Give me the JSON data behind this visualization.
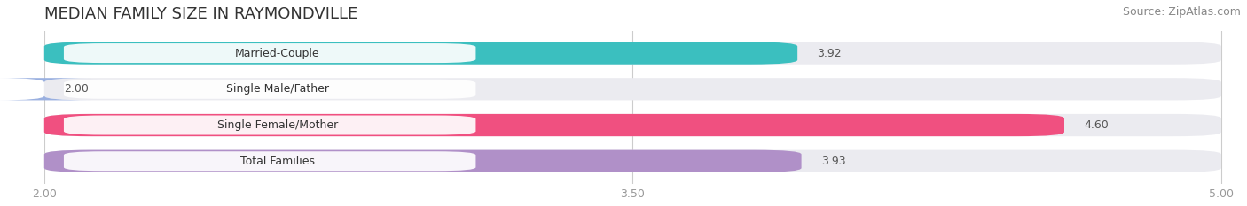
{
  "title": "MEDIAN FAMILY SIZE IN RAYMONDVILLE",
  "source": "Source: ZipAtlas.com",
  "categories": [
    "Married-Couple",
    "Single Male/Father",
    "Single Female/Mother",
    "Total Families"
  ],
  "values": [
    3.92,
    2.0,
    4.6,
    3.93
  ],
  "bar_colors": [
    "#3bbfbf",
    "#9ab0e0",
    "#f05080",
    "#b090c8"
  ],
  "xlim": [
    2.0,
    5.0
  ],
  "xticks": [
    2.0,
    3.5,
    5.0
  ],
  "xticklabels": [
    "2.00",
    "3.50",
    "5.00"
  ],
  "background_color": "#ffffff",
  "bar_background_color": "#ebebf0",
  "bar_height": 0.62,
  "title_fontsize": 13,
  "source_fontsize": 9,
  "label_fontsize": 9,
  "value_fontsize": 9,
  "bar_gap": 0.18
}
